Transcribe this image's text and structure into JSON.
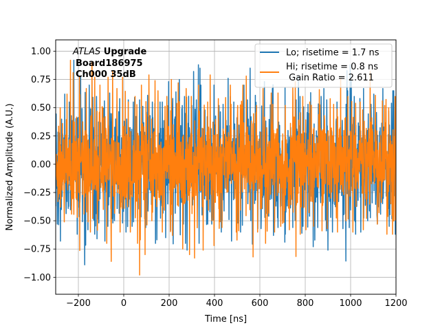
{
  "chart_data": {
    "type": "line",
    "title": "",
    "xlabel": "Time [ns]",
    "ylabel": "Normalized Amplitude (A.U.)",
    "xlim": [
      -300,
      1200
    ],
    "ylim": [
      -1.15,
      1.1
    ],
    "grid": true,
    "xticks": [
      -200,
      0,
      200,
      400,
      600,
      800,
      1000,
      1200
    ],
    "xtick_labels": [
      "−200",
      "0",
      "200",
      "400",
      "600",
      "800",
      "1000",
      "1200"
    ],
    "yticks": [
      -1.0,
      -0.75,
      -0.5,
      -0.25,
      0.0,
      0.25,
      0.5,
      0.75,
      1.0
    ],
    "ytick_labels": [
      "−1.00",
      "−0.75",
      "−0.50",
      "−0.25",
      "0.00",
      "0.25",
      "0.50",
      "0.75",
      "1.00"
    ],
    "annotation": {
      "atlas_italic": "ATLAS",
      "atlas_bold": " Upgrade",
      "line2": "Board186975",
      "line3": "Ch000 35dB"
    },
    "legend": {
      "placement": "top-right",
      "entries": [
        "Lo; risetime = 1.7 ns",
        "Hi; risetime = 0.8 ns",
        " Gain Ratio = 2.611"
      ]
    },
    "series": [
      {
        "name": "Lo; risetime = 1.7 ns",
        "color": "#1f77b4",
        "x_start": -300,
        "x_end": 1200,
        "x_step": 1,
        "seed": 1869,
        "noise_sd": 0.24,
        "clip": [
          -0.9,
          0.85
        ],
        "peaks": [
          [
            -275,
            -0.4
          ],
          [
            -260,
            0.62
          ],
          [
            -240,
            0.55
          ],
          [
            -220,
            0.92
          ],
          [
            -205,
            -0.62
          ],
          [
            -190,
            0.78
          ],
          [
            -172,
            0.73
          ],
          [
            -172,
            -0.89
          ],
          [
            -158,
            -0.58
          ],
          [
            -152,
            0.7
          ],
          [
            -140,
            0.74
          ],
          [
            -128,
            -0.62
          ],
          [
            -118,
            -0.66
          ],
          [
            -110,
            -0.52
          ],
          [
            -85,
            0.56
          ],
          [
            -70,
            -0.55
          ],
          [
            -62,
            0.63
          ],
          [
            -48,
            -0.52
          ],
          [
            -30,
            0.53
          ],
          [
            -18,
            0.58
          ],
          [
            -5,
            -0.52
          ],
          [
            10,
            -0.6
          ],
          [
            -120,
            0.6
          ],
          [
            20,
            0.57
          ],
          [
            37,
            -0.55
          ],
          [
            42,
            0.55
          ],
          [
            70,
            0.57
          ],
          [
            97,
            -0.56
          ],
          [
            105,
            0.61
          ],
          [
            126,
            0.55
          ],
          [
            140,
            -0.7
          ],
          [
            160,
            0.55
          ],
          [
            170,
            0.55
          ],
          [
            185,
            -0.65
          ],
          [
            198,
            0.73
          ],
          [
            210,
            0.6
          ],
          [
            230,
            0.64
          ],
          [
            245,
            0.75
          ],
          [
            258,
            0.52
          ],
          [
            263,
            -0.53
          ],
          [
            268,
            0.6
          ],
          [
            272,
            -0.7
          ],
          [
            279,
            -0.76
          ],
          [
            300,
            0.52
          ],
          [
            308,
            0.82
          ],
          [
            320,
            0.57
          ],
          [
            329,
            0.88
          ],
          [
            332,
            -0.7
          ],
          [
            336,
            0.85
          ],
          [
            340,
            0.7
          ],
          [
            370,
            -0.53
          ],
          [
            388,
            -0.53
          ],
          [
            398,
            0.7
          ],
          [
            420,
            0.52
          ],
          [
            430,
            -0.6
          ],
          [
            438,
            0.53
          ],
          [
            460,
            0.76
          ],
          [
            485,
            0.55
          ],
          [
            503,
            -0.52
          ],
          [
            515,
            -0.6
          ],
          [
            520,
            0.53
          ],
          [
            530,
            0.7
          ],
          [
            545,
            0.57
          ],
          [
            560,
            -0.5
          ],
          [
            580,
            0.61
          ],
          [
            591,
            -0.57
          ],
          [
            605,
            -0.57
          ],
          [
            620,
            0.73
          ],
          [
            655,
            0.67
          ],
          [
            660,
            -0.63
          ],
          [
            680,
            -0.56
          ],
          [
            700,
            -0.5
          ],
          [
            711,
            0.68
          ],
          [
            712,
            -0.62
          ],
          [
            745,
            -0.56
          ],
          [
            760,
            0.57
          ],
          [
            770,
            0.78
          ],
          [
            777,
            0.6
          ],
          [
            790,
            -0.55
          ],
          [
            812,
            0.53
          ],
          [
            835,
            -0.73
          ],
          [
            855,
            -0.56
          ],
          [
            870,
            0.6
          ],
          [
            882,
            0.67
          ],
          [
            895,
            0.57
          ],
          [
            900,
            -0.76
          ],
          [
            920,
            -0.6
          ],
          [
            940,
            0.55
          ],
          [
            966,
            -0.57
          ],
          [
            980,
            0.53
          ],
          [
            998,
            0.88
          ],
          [
            1003,
            0.74
          ],
          [
            1016,
            0.6
          ],
          [
            1022,
            -0.62
          ],
          [
            1045,
            -0.6
          ],
          [
            1057,
            0.67
          ],
          [
            1075,
            -0.5
          ],
          [
            1090,
            0.53
          ],
          [
            1102,
            0.62
          ],
          [
            1118,
            -0.53
          ],
          [
            1142,
            0.67
          ],
          [
            1170,
            -0.55
          ],
          [
            1180,
            0.54
          ],
          [
            1190,
            0.65
          ],
          [
            1197,
            -0.62
          ]
        ]
      },
      {
        "name": "Hi; risetime = 0.8 ns",
        "color": "#ff7f0e",
        "x_start": -300,
        "x_end": 1200,
        "x_step": 1,
        "seed": 2611,
        "noise_sd": 0.22,
        "clip": [
          -0.99,
          0.92
        ],
        "peaks": [
          [
            -290,
            -0.33
          ],
          [
            -280,
            0.5
          ],
          [
            -262,
            -0.51
          ],
          [
            -250,
            0.62
          ],
          [
            -235,
            0.92
          ],
          [
            -223,
            0.81
          ],
          [
            -205,
            -0.47
          ],
          [
            -195,
            0.78
          ],
          [
            -165,
            0.67
          ],
          [
            -157,
            -0.51
          ],
          [
            -147,
            -0.6
          ],
          [
            -140,
            0.9
          ],
          [
            -128,
            0.77
          ],
          [
            -105,
            0.7
          ],
          [
            -95,
            0.51
          ],
          [
            -90,
            -0.4
          ],
          [
            -75,
            -0.7
          ],
          [
            -69,
            0.77
          ],
          [
            -55,
            -0.86
          ],
          [
            -49,
            0.82
          ],
          [
            -30,
            0.67
          ],
          [
            -16,
            -0.6
          ],
          [
            -5,
            0.77
          ],
          [
            20,
            0.55
          ],
          [
            29,
            -0.6
          ],
          [
            50,
            0.6
          ],
          [
            61,
            -0.7
          ],
          [
            70,
            -0.98
          ],
          [
            78,
            0.7
          ],
          [
            94,
            -0.8
          ],
          [
            111,
            0.79
          ],
          [
            124,
            -0.5
          ],
          [
            138,
            0.74
          ],
          [
            151,
            0.65
          ],
          [
            170,
            -0.6
          ],
          [
            190,
            0.6
          ],
          [
            210,
            0.75
          ],
          [
            215,
            -0.63
          ],
          [
            240,
            0.72
          ],
          [
            260,
            -0.75
          ],
          [
            275,
            0.67
          ],
          [
            290,
            -0.8
          ],
          [
            298,
            0.6
          ],
          [
            312,
            -0.83
          ],
          [
            330,
            0.7
          ],
          [
            350,
            -0.76
          ],
          [
            370,
            0.55
          ],
          [
            381,
            0.79
          ],
          [
            389,
            -0.5
          ],
          [
            398,
            -0.72
          ],
          [
            417,
            0.58
          ],
          [
            433,
            -0.56
          ],
          [
            449,
            0.59
          ],
          [
            470,
            0.7
          ],
          [
            496,
            -0.6
          ],
          [
            502,
            0.52
          ],
          [
            525,
            0.7
          ],
          [
            540,
            0.78
          ],
          [
            570,
            -0.82
          ],
          [
            585,
            0.52
          ],
          [
            590,
            -0.6
          ],
          [
            614,
            0.67
          ],
          [
            625,
            -0.7
          ],
          [
            650,
            0.63
          ],
          [
            665,
            -0.6
          ],
          [
            680,
            0.63
          ],
          [
            692,
            -0.55
          ],
          [
            712,
            0.52
          ],
          [
            730,
            -0.58
          ],
          [
            745,
            0.68
          ],
          [
            756,
            0.73
          ],
          [
            778,
            -0.62
          ],
          [
            789,
            0.6
          ],
          [
            803,
            -0.58
          ],
          [
            820,
            0.55
          ],
          [
            837,
            -0.55
          ],
          [
            862,
            0.66
          ],
          [
            874,
            -0.59
          ],
          [
            897,
            -0.57
          ],
          [
            910,
            0.58
          ],
          [
            925,
            0.53
          ],
          [
            942,
            -0.6
          ],
          [
            956,
            0.76
          ],
          [
            980,
            -0.5
          ],
          [
            988,
            0.6
          ],
          [
            1010,
            -0.6
          ],
          [
            1022,
            0.54
          ],
          [
            1042,
            0.55
          ],
          [
            1056,
            -0.58
          ],
          [
            1070,
            -0.48
          ],
          [
            1086,
            0.82
          ],
          [
            1109,
            0.61
          ],
          [
            1118,
            -0.53
          ],
          [
            1140,
            0.56
          ],
          [
            1150,
            0.52
          ],
          [
            1160,
            -0.62
          ],
          [
            1168,
            0.5
          ],
          [
            1185,
            -0.62
          ],
          [
            1196,
            0.6
          ]
        ]
      }
    ]
  }
}
